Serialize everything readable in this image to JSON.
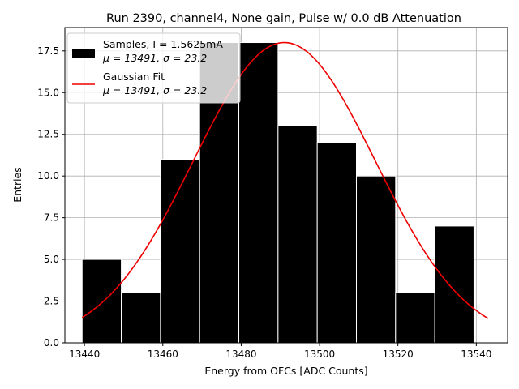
{
  "chart_data": {
    "type": "bar",
    "title": "Run 2390, channel4, None gain, Pulse w/ 0.0 dB Attenuation",
    "xlabel": "Energy from OFCs [ADC Counts]",
    "ylabel": "Entries",
    "xlim": [
      13435,
      13548
    ],
    "ylim": [
      0,
      18.9
    ],
    "xticks": [
      13440,
      13460,
      13480,
      13500,
      13520,
      13540
    ],
    "yticks": [
      0,
      2.5,
      5,
      7.5,
      10,
      12.5,
      15,
      17.5
    ],
    "xtick_labels": [
      "13440",
      "13460",
      "13480",
      "13500",
      "13520",
      "13540"
    ],
    "ytick_labels": [
      "0.0",
      "2.5",
      "5.0",
      "7.5",
      "10.0",
      "12.5",
      "15.0",
      "17.5"
    ],
    "grid": true,
    "legend_position": "top-left",
    "bins": {
      "edges": [
        13439.4,
        13449.4,
        13459.4,
        13469.4,
        13479.4,
        13489.4,
        13499.4,
        13509.4,
        13519.4,
        13529.4,
        13539.4
      ],
      "width": 10,
      "counts": [
        5,
        3,
        11,
        18,
        18,
        13,
        12,
        10,
        3,
        7
      ]
    },
    "series": [
      {
        "name": "Samples, I = 1.5625mA",
        "stats": "μ = 13491, σ = 23.2",
        "type": "histogram",
        "color": "#000000",
        "edgecolor": "#ffffff"
      },
      {
        "name": "Gaussian Fit",
        "stats": "μ = 13491, σ = 23.2",
        "type": "line",
        "color": "#ee0000",
        "amplitude": 18,
        "mu": 13491,
        "sigma": 23.2,
        "x_range": [
          13439.4,
          13543
        ]
      }
    ]
  }
}
